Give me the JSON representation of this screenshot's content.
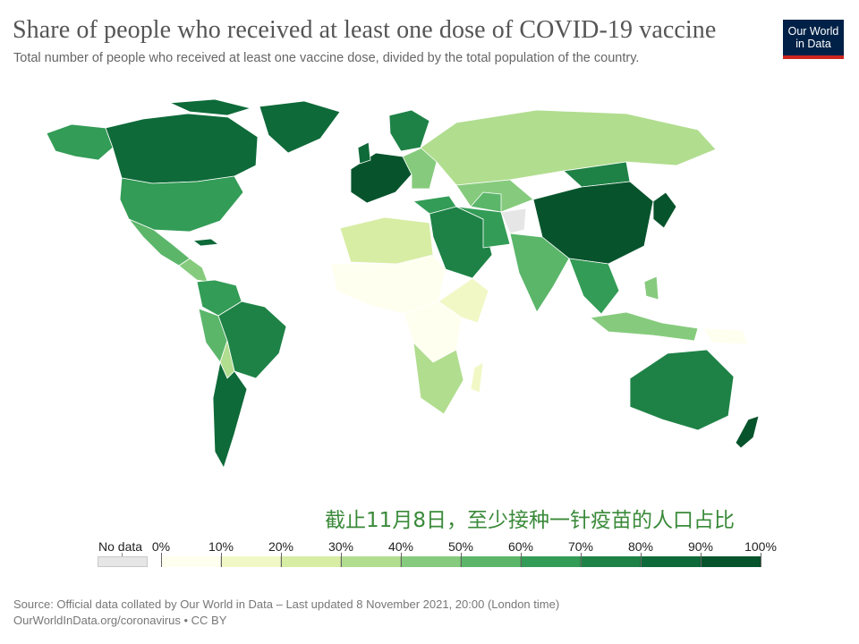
{
  "header": {
    "title": "Share of people who received at least one dose of COVID-19 vaccine",
    "subtitle": "Total number of people who received at least one vaccine dose, divided by the total population of the country."
  },
  "logo": {
    "line1": "Our World",
    "line2": "in Data"
  },
  "overlay_caption": "截止11月8日，至少接种一针疫苗的人口占比",
  "legend": {
    "no_data_label": "No data",
    "no_data_color": "#e6e6e6",
    "ticks": [
      "0%",
      "10%",
      "20%",
      "30%",
      "40%",
      "50%",
      "60%",
      "70%",
      "80%",
      "90%",
      "100%"
    ],
    "colors": [
      "#fffff0",
      "#f1f8c6",
      "#d7eda4",
      "#b1dd8f",
      "#86cb7d",
      "#5bb66a",
      "#339c56",
      "#1e8246",
      "#0e6a39",
      "#07542c"
    ]
  },
  "footer": {
    "source": "Source: Official data collated by Our World in Data – Last updated 8 November 2021, 20:00 (London time)",
    "link": "OurWorldInData.org/coronavirus • CC BY"
  }
}
